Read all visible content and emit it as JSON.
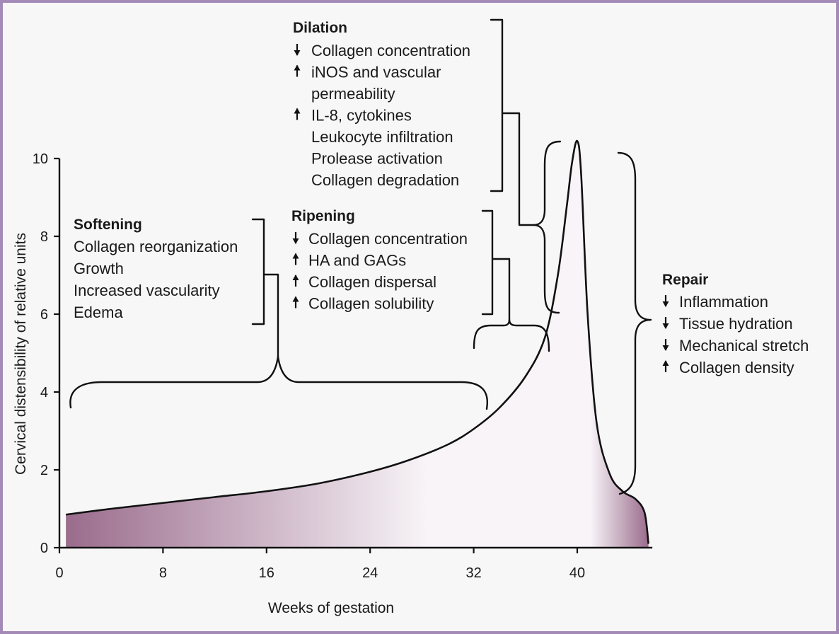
{
  "chart_data": {
    "type": "area",
    "xlabel": "Weeks of gestation",
    "ylabel": "Cervical distensibility of relative units",
    "xlim": [
      0,
      46
    ],
    "ylim": [
      0,
      10
    ],
    "x_ticks": [
      "0",
      "8",
      "16",
      "24",
      "32",
      "40"
    ],
    "y_ticks": [
      "0",
      "2",
      "4",
      "6",
      "8",
      "10"
    ],
    "series": [
      {
        "x": [
          0.5,
          4,
          8,
          12,
          16,
          20,
          24,
          27,
          30,
          32,
          34,
          36,
          37.5,
          38.5,
          39.2,
          39.6,
          40,
          40.3,
          40.8,
          41.5,
          42.5,
          43.5,
          44.5,
          45.2,
          45.5
        ],
        "y": [
          0.85,
          1.0,
          1.15,
          1.3,
          1.45,
          1.65,
          1.95,
          2.25,
          2.65,
          3.05,
          3.6,
          4.4,
          5.4,
          7.0,
          8.8,
          9.9,
          10.45,
          9.6,
          6.0,
          3.2,
          1.9,
          1.45,
          1.25,
          0.9,
          0.1
        ]
      }
    ],
    "gradient_colors": [
      "#9a6c8c",
      "#f8f4f8"
    ],
    "annotations": {
      "softening": {
        "title": "Softening",
        "items": [
          {
            "arrow": "",
            "text": "Collagen reorganization"
          },
          {
            "arrow": "",
            "text": "Growth"
          },
          {
            "arrow": "",
            "text": "Increased vascularity"
          },
          {
            "arrow": "",
            "text": "Edema"
          }
        ]
      },
      "ripening": {
        "title": "Ripening",
        "items": [
          {
            "arrow": "down",
            "text": "Collagen concentration"
          },
          {
            "arrow": "up",
            "text": "HA and GAGs"
          },
          {
            "arrow": "up",
            "text": "Collagen dispersal"
          },
          {
            "arrow": "up",
            "text": "Collagen solubility"
          }
        ]
      },
      "dilation": {
        "title": "Dilation",
        "items": [
          {
            "arrow": "down",
            "text": "Collagen concentration"
          },
          {
            "arrow": "up",
            "text": "iNOS and vascular"
          },
          {
            "arrow": "",
            "text": "permeability"
          },
          {
            "arrow": "up",
            "text": "IL-8, cytokines"
          },
          {
            "arrow": "",
            "text": "Leukocyte infiltration"
          },
          {
            "arrow": "",
            "text": "Prolease activation"
          },
          {
            "arrow": "",
            "text": "Collagen degradation"
          }
        ]
      },
      "repair": {
        "title": "Repair",
        "items": [
          {
            "arrow": "down",
            "text": "Inflammation"
          },
          {
            "arrow": "down",
            "text": "Tissue hydration"
          },
          {
            "arrow": "down",
            "text": "Mechanical stretch"
          },
          {
            "arrow": "up",
            "text": "Collagen density"
          }
        ]
      }
    }
  }
}
